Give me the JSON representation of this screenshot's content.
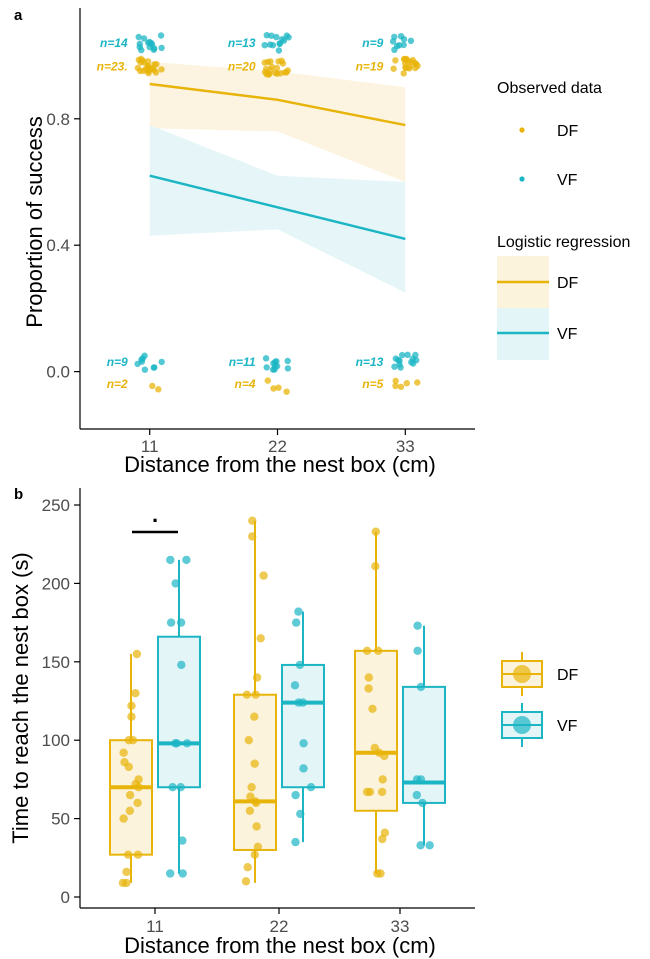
{
  "colors": {
    "DF": "#E8B40A",
    "VF": "#1BB5C4",
    "DF_fill": "#FCF3DD",
    "VF_fill": "#E3F5F7"
  },
  "chart_data": [
    {
      "panel": "a",
      "type": "line",
      "xlabel": "Distance from the nest box (cm)",
      "ylabel": "Proportion of success",
      "x_ticks": [
        "11",
        "22",
        "33"
      ],
      "y_ticks": [
        "0.0",
        "0.4",
        "0.8"
      ],
      "xlim": [
        5,
        39
      ],
      "ylim": [
        -0.15,
        1.1
      ],
      "legend_observed_title": "Observed data",
      "legend_regression_title": "Logistic regression",
      "series": [
        {
          "name": "DF",
          "x": [
            11,
            22,
            33
          ],
          "fit": [
            0.91,
            0.86,
            0.78
          ],
          "ci_low": [
            0.77,
            0.76,
            0.6
          ],
          "ci_high": [
            0.98,
            0.95,
            0.9
          ]
        },
        {
          "name": "VF",
          "x": [
            11,
            22,
            33
          ],
          "fit": [
            0.62,
            0.52,
            0.42
          ],
          "ci_low": [
            0.43,
            0.45,
            0.25
          ],
          "ci_high": [
            0.78,
            0.62,
            0.6
          ]
        }
      ],
      "annotations": [
        {
          "x": 11,
          "outcome": 1,
          "group": "VF",
          "label": "n=14",
          "count": 14
        },
        {
          "x": 11,
          "outcome": 1,
          "group": "DF",
          "label": "n=23.",
          "count": 23
        },
        {
          "x": 22,
          "outcome": 1,
          "group": "VF",
          "label": "n=13",
          "count": 13
        },
        {
          "x": 22,
          "outcome": 1,
          "group": "DF",
          "label": "n=20",
          "count": 20
        },
        {
          "x": 33,
          "outcome": 1,
          "group": "VF",
          "label": "n=9",
          "count": 9
        },
        {
          "x": 33,
          "outcome": 1,
          "group": "DF",
          "label": "n=19",
          "count": 19
        },
        {
          "x": 11,
          "outcome": 0,
          "group": "VF",
          "label": "n=9",
          "count": 9
        },
        {
          "x": 11,
          "outcome": 0,
          "group": "DF",
          "label": "n=2",
          "count": 2
        },
        {
          "x": 22,
          "outcome": 0,
          "group": "VF",
          "label": "n=11",
          "count": 11
        },
        {
          "x": 22,
          "outcome": 0,
          "group": "DF",
          "label": "n=4",
          "count": 4
        },
        {
          "x": 33,
          "outcome": 0,
          "group": "VF",
          "label": "n=13",
          "count": 13
        },
        {
          "x": 33,
          "outcome": 0,
          "group": "DF",
          "label": "n=5",
          "count": 5
        }
      ]
    },
    {
      "panel": "b",
      "type": "box",
      "xlabel": "Distance from the nest box (cm)",
      "ylabel": "Time to reach the nest box (s)",
      "x_ticks": [
        "11",
        "22",
        "33"
      ],
      "y_ticks": [
        "0",
        "50",
        "100",
        "150",
        "200",
        "250"
      ],
      "ylim": [
        -5,
        255
      ],
      "significance": {
        "between_x": 11,
        "symbol": "."
      },
      "series": [
        {
          "name": "DF",
          "boxes": [
            {
              "x": 11,
              "whisker_low": 9,
              "q1": 27,
              "median": 70,
              "q3": 100,
              "whisker_high": 155,
              "points": [
                155,
                130,
                122,
                115,
                100,
                100,
                92,
                86,
                83,
                75,
                72,
                70,
                65,
                60,
                55,
                50,
                27,
                27,
                16,
                9,
                9
              ]
            },
            {
              "x": 22,
              "whisker_low": 9,
              "q1": 30,
              "median": 61,
              "q3": 129,
              "whisker_high": 240,
              "points": [
                240,
                230,
                205,
                165,
                140,
                129,
                129,
                115,
                100,
                85,
                70,
                64,
                61,
                60,
                55,
                45,
                32,
                27,
                19,
                10
              ]
            },
            {
              "x": 33,
              "whisker_low": 15,
              "q1": 55,
              "median": 92,
              "q3": 157,
              "whisker_high": 233,
              "points": [
                233,
                211,
                157,
                157,
                140,
                133,
                120,
                95,
                92,
                90,
                75,
                67,
                67,
                67,
                41,
                37,
                15,
                15
              ]
            }
          ]
        },
        {
          "name": "VF",
          "boxes": [
            {
              "x": 11,
              "whisker_low": 15,
              "q1": 70,
              "median": 98,
              "q3": 166,
              "whisker_high": 215,
              "points": [
                215,
                215,
                200,
                175,
                175,
                148,
                98,
                98,
                98,
                70,
                70,
                36,
                15,
                15
              ]
            },
            {
              "x": 22,
              "whisker_low": 35,
              "q1": 70,
              "median": 124,
              "q3": 148,
              "whisker_high": 182,
              "points": [
                182,
                175,
                148,
                135,
                124,
                124,
                98,
                82,
                70,
                65,
                53,
                35
              ]
            },
            {
              "x": 33,
              "whisker_low": 33,
              "q1": 60,
              "median": 73,
              "q3": 134,
              "whisker_high": 173,
              "points": [
                173,
                157,
                134,
                75,
                75,
                65,
                60,
                33,
                33
              ]
            }
          ]
        }
      ],
      "legend": [
        "DF",
        "VF"
      ]
    }
  ]
}
